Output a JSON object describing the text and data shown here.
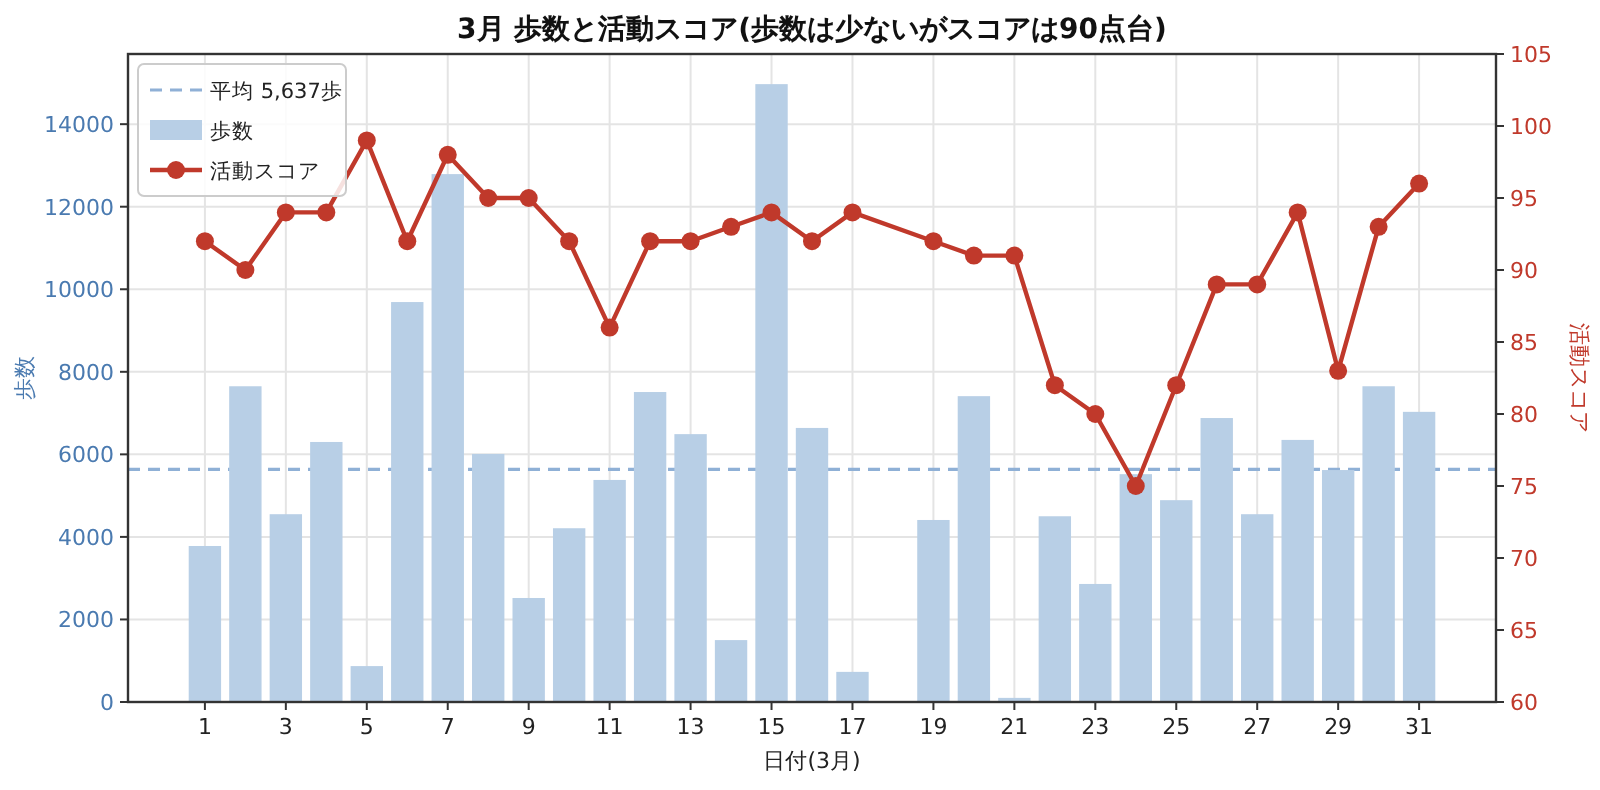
{
  "chart_data": {
    "type": "bar",
    "title": "3月 歩数と活動スコア(歩数は少ないがスコアは90点台)",
    "xlabel": "日付(3月)",
    "ylabel": "歩数",
    "y2label": "活動スコア",
    "x": [
      1,
      2,
      3,
      4,
      5,
      6,
      7,
      8,
      9,
      10,
      11,
      12,
      13,
      14,
      15,
      16,
      17,
      19,
      20,
      21,
      22,
      23,
      24,
      25,
      26,
      27,
      28,
      29,
      30,
      31
    ],
    "series": [
      {
        "name": "歩数",
        "color": "#b8cfe6",
        "values": [
          3780,
          7650,
          4550,
          6300,
          870,
          9690,
          12790,
          6010,
          2520,
          4210,
          5380,
          7510,
          6490,
          1500,
          14970,
          6640,
          730,
          4410,
          7410,
          100,
          4500,
          2860,
          5520,
          4890,
          6880,
          4550,
          6350,
          5620,
          7650,
          7030
        ]
      },
      {
        "name": "活動スコア",
        "type": "line",
        "axis": "y2",
        "color": "#c0392b",
        "values": [
          92,
          90,
          94,
          94,
          99,
          92,
          98,
          95,
          95,
          92,
          86,
          92,
          92,
          93,
          94,
          92,
          94,
          92,
          91,
          91,
          82,
          80,
          75,
          82,
          89,
          89,
          94,
          83,
          93,
          96
        ]
      }
    ],
    "xlim": [
      -0.9,
      32.9
    ],
    "xticks": [
      1,
      3,
      5,
      7,
      9,
      11,
      13,
      15,
      17,
      19,
      21,
      23,
      25,
      27,
      29,
      31
    ],
    "ylim": [
      0,
      15700
    ],
    "yticks": [
      0,
      2000,
      4000,
      6000,
      8000,
      10000,
      12000,
      14000
    ],
    "y2lim": [
      60,
      105
    ],
    "y2ticks": [
      60,
      65,
      70,
      75,
      80,
      85,
      90,
      95,
      100,
      105
    ],
    "ref_lines": [
      {
        "axis": "y",
        "value": 5637,
        "label": "平均 5,637歩",
        "color": "#8fb0d6",
        "line_style": "dashed"
      }
    ],
    "marker": "circle",
    "grid": true,
    "legend": "top left"
  }
}
